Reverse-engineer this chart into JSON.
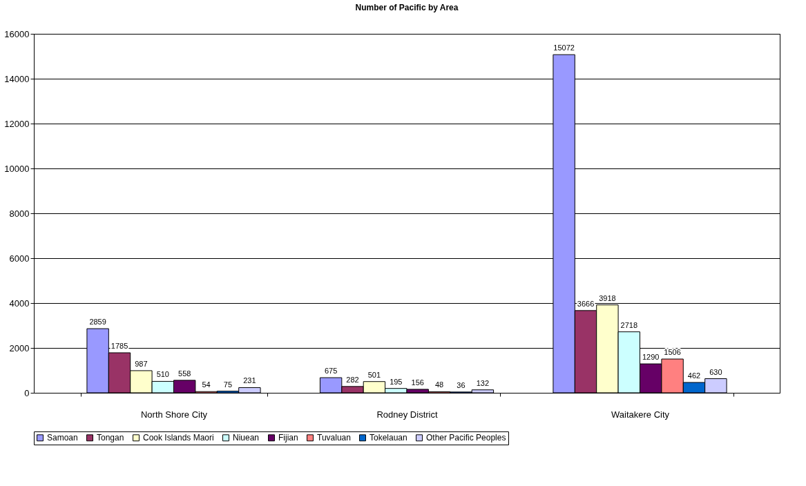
{
  "chart_data": {
    "type": "bar",
    "title": "Number of Pacific by Area",
    "categories": [
      "North Shore City",
      "Rodney District",
      "Waitakere City"
    ],
    "series": [
      {
        "name": "Samoan",
        "color": "#9999ff",
        "values": [
          2859,
          675,
          15072
        ]
      },
      {
        "name": "Tongan",
        "color": "#993366",
        "values": [
          1785,
          282,
          3666
        ]
      },
      {
        "name": "Cook Islands Maori",
        "color": "#ffffcc",
        "values": [
          987,
          501,
          3918
        ]
      },
      {
        "name": "Niuean",
        "color": "#ccffff",
        "values": [
          510,
          195,
          2718
        ]
      },
      {
        "name": "Fijian",
        "color": "#660066",
        "values": [
          558,
          156,
          1290
        ]
      },
      {
        "name": "Tuvaluan",
        "color": "#ff8080",
        "values": [
          54,
          48,
          1506
        ]
      },
      {
        "name": "Tokelauan",
        "color": "#0066cc",
        "values": [
          75,
          36,
          462
        ]
      },
      {
        "name": "Other Pacific Peoples",
        "color": "#ccccff",
        "values": [
          231,
          132,
          630
        ]
      }
    ],
    "ylim": [
      0,
      16000
    ],
    "yticks": [
      0,
      2000,
      4000,
      6000,
      8000,
      10000,
      12000,
      14000,
      16000
    ],
    "grid": "y",
    "legend": "bottom",
    "data_labels": true
  }
}
